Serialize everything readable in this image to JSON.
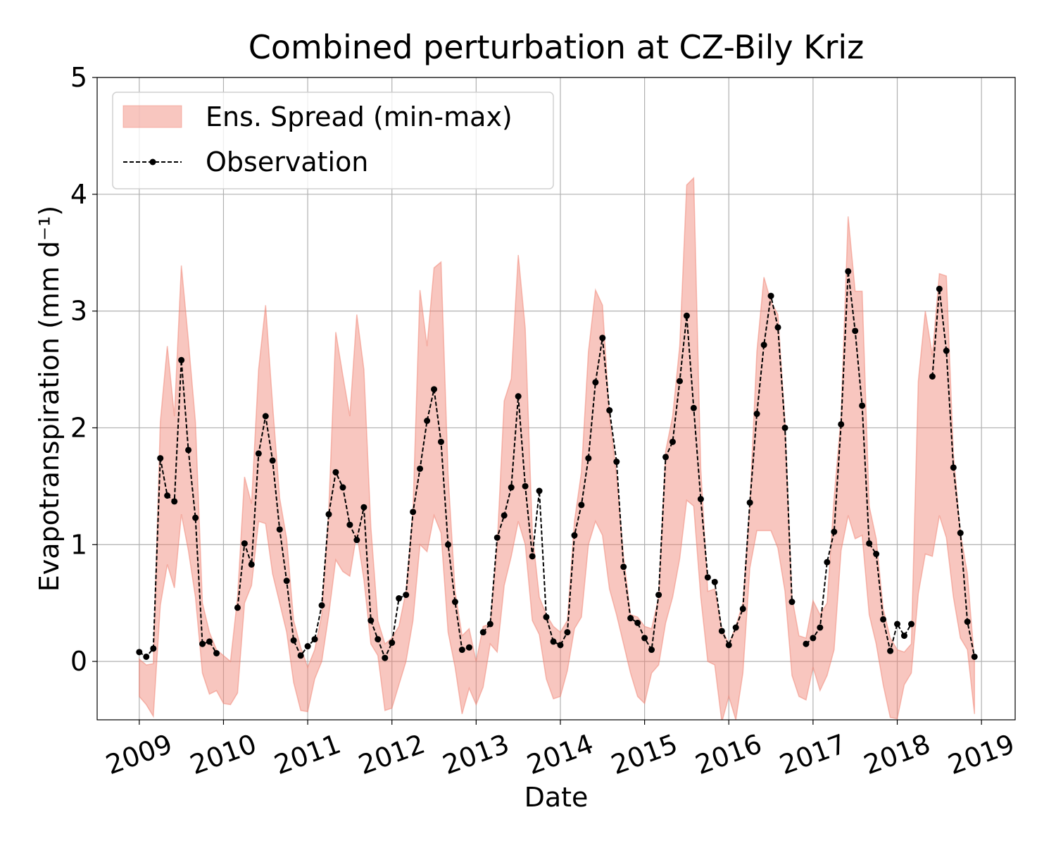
{
  "chart_data": {
    "type": "line",
    "title": "Combined perturbation at CZ-Bily Kriz",
    "xlabel": "Date",
    "ylabel": "Evapotranspiration  (mm d⁻¹)",
    "xlim": [
      2008.5,
      2019.4
    ],
    "xticks": [
      2009,
      2010,
      2011,
      2012,
      2013,
      2014,
      2015,
      2016,
      2017,
      2018,
      2019
    ],
    "ylim": [
      -0.5,
      5
    ],
    "yticks": [
      0,
      1,
      2,
      3,
      4,
      5
    ],
    "grid": true,
    "legend": "upper left",
    "x": [
      2009,
      2009.083,
      2009.167,
      2009.25,
      2009.333,
      2009.417,
      2009.5,
      2009.583,
      2009.667,
      2009.75,
      2009.833,
      2009.917,
      2010,
      2010.083,
      2010.167,
      2010.25,
      2010.333,
      2010.417,
      2010.5,
      2010.583,
      2010.667,
      2010.75,
      2010.833,
      2010.917,
      2011,
      2011.083,
      2011.167,
      2011.25,
      2011.333,
      2011.417,
      2011.5,
      2011.583,
      2011.667,
      2011.75,
      2011.833,
      2011.917,
      2012,
      2012.083,
      2012.167,
      2012.25,
      2012.333,
      2012.417,
      2012.5,
      2012.583,
      2012.667,
      2012.75,
      2012.833,
      2012.917,
      2013,
      2013.083,
      2013.167,
      2013.25,
      2013.333,
      2013.417,
      2013.5,
      2013.583,
      2013.667,
      2013.75,
      2013.833,
      2013.917,
      2014,
      2014.083,
      2014.167,
      2014.25,
      2014.333,
      2014.417,
      2014.5,
      2014.583,
      2014.667,
      2014.75,
      2014.833,
      2014.917,
      2015,
      2015.083,
      2015.167,
      2015.25,
      2015.333,
      2015.417,
      2015.5,
      2015.583,
      2015.667,
      2015.75,
      2015.833,
      2015.917,
      2016,
      2016.083,
      2016.167,
      2016.25,
      2016.333,
      2016.417,
      2016.5,
      2016.583,
      2016.667,
      2016.75,
      2016.833,
      2016.917,
      2017,
      2017.083,
      2017.167,
      2017.25,
      2017.333,
      2017.417,
      2017.5,
      2017.583,
      2017.667,
      2017.75,
      2017.833,
      2017.917,
      2018,
      2018.083,
      2018.167,
      2018.25,
      2018.333,
      2018.417,
      2018.5,
      2018.583,
      2018.667,
      2018.75,
      2018.833,
      2018.917
    ],
    "series": [
      {
        "name": "Ens. Spread (min-max)",
        "kind": "band",
        "color": "#f08070",
        "upper": [
          0.02,
          -0.03,
          -0.02,
          2.05,
          2.7,
          2.1,
          3.39,
          2.75,
          2.05,
          0.5,
          0.25,
          0.1,
          0.05,
          0,
          0.55,
          1.58,
          1.35,
          2.5,
          3.05,
          2.2,
          1.4,
          1.05,
          0.35,
          0.12,
          -0.05,
          0.1,
          0.4,
          1.3,
          2.82,
          2.45,
          2.1,
          2.97,
          2.5,
          1.15,
          0.35,
          0.15,
          0.2,
          0.3,
          0.6,
          1.3,
          3.18,
          2.7,
          3.37,
          3.42,
          1.6,
          0.6,
          0.22,
          0.28,
          0,
          0.3,
          0.32,
          1,
          2.23,
          2.42,
          3.48,
          2.85,
          1.1,
          0.55,
          0.4,
          0.3,
          0.25,
          0.35,
          1.2,
          1.62,
          2.65,
          3.18,
          3.05,
          2.1,
          1.6,
          0.9,
          0.4,
          0.38,
          0.3,
          0.28,
          0.55,
          1.8,
          2.1,
          2.7,
          4.08,
          4.14,
          1.65,
          0.6,
          0.62,
          0.28,
          0.15,
          0.3,
          0.5,
          1.35,
          2.65,
          3.29,
          3.08,
          2.97,
          2.05,
          0.55,
          0.22,
          0.2,
          0.52,
          0.4,
          0.5,
          1.4,
          2.1,
          3.81,
          3.17,
          3.17,
          1.33,
          1.05,
          0.45,
          0.2,
          0.1,
          0.08,
          0.15,
          2.4,
          3,
          2.62,
          3.32,
          3.3,
          1.77,
          1.1,
          0.75,
          0
        ],
        "lower": [
          -0.3,
          -0.37,
          -0.47,
          0.48,
          0.83,
          0.63,
          1.26,
          0.95,
          0.55,
          -0.1,
          -0.28,
          -0.25,
          -0.36,
          -0.37,
          -0.27,
          0.5,
          0.65,
          1.2,
          1.18,
          0.75,
          0.5,
          0.25,
          -0.18,
          -0.42,
          -0.43,
          -0.15,
          0,
          0.4,
          0.87,
          0.77,
          0.73,
          1.1,
          0.7,
          0.15,
          0.05,
          -0.42,
          -0.4,
          -0.2,
          0,
          0.35,
          1,
          0.94,
          1.25,
          1.1,
          0.25,
          -0.05,
          -0.45,
          -0.23,
          -0.37,
          -0.22,
          0.15,
          0.08,
          0.65,
          0.9,
          1.2,
          1,
          0.35,
          0.23,
          -0.15,
          -0.32,
          -0.3,
          -0.08,
          0.28,
          0.38,
          1,
          1.2,
          1.08,
          0.62,
          0.4,
          0.15,
          -0.1,
          -0.3,
          -0.36,
          -0.1,
          -0.03,
          0.33,
          0.55,
          0.88,
          1.38,
          1.33,
          0.55,
          0,
          -0.03,
          -0.52,
          -0.3,
          -0.5,
          -0.1,
          0.8,
          1.12,
          1.12,
          1.12,
          0.97,
          0.6,
          -0.12,
          -0.3,
          -0.33,
          -0.05,
          -0.25,
          -0.12,
          0.1,
          0.95,
          1.25,
          1.05,
          1.08,
          0.4,
          0.15,
          -0.2,
          -0.48,
          -0.49,
          -0.2,
          -0.1,
          0.58,
          0.92,
          0.9,
          1.25,
          1.06,
          0.55,
          0.2,
          0.1,
          -0.45
        ]
      },
      {
        "name": "Observation",
        "color": "#000000",
        "values": [
          0.08,
          0.04,
          0.11,
          1.74,
          1.42,
          1.37,
          2.58,
          1.81,
          1.23,
          0.15,
          0.17,
          0.07,
          null,
          null,
          0.46,
          1.01,
          0.83,
          1.78,
          2.1,
          1.72,
          1.13,
          0.69,
          0.18,
          0.05,
          0.13,
          0.19,
          0.48,
          1.26,
          1.62,
          1.49,
          1.17,
          1.04,
          1.32,
          0.35,
          0.19,
          0.03,
          0.16,
          0.54,
          0.57,
          1.28,
          1.65,
          2.06,
          2.33,
          1.88,
          1,
          0.51,
          0.1,
          0.12,
          null,
          0.25,
          0.32,
          1.06,
          1.25,
          1.49,
          2.27,
          1.5,
          0.9,
          1.46,
          0.38,
          0.17,
          0.14,
          0.25,
          1.08,
          1.34,
          1.74,
          2.39,
          2.77,
          2.15,
          1.71,
          0.81,
          0.37,
          0.33,
          0.2,
          0.1,
          0.57,
          1.75,
          1.88,
          2.4,
          2.96,
          2.17,
          1.39,
          0.72,
          0.68,
          0.26,
          0.14,
          0.29,
          0.45,
          1.36,
          2.12,
          2.71,
          3.13,
          2.86,
          2,
          0.51,
          null,
          0.15,
          0.2,
          0.29,
          0.85,
          1.11,
          2.03,
          3.34,
          2.83,
          2.19,
          1.01,
          0.92,
          0.36,
          0.09,
          0.32,
          0.22,
          0.32,
          null,
          null,
          2.44,
          3.19,
          2.66,
          1.66,
          1.1,
          0.34,
          0.04
        ]
      }
    ]
  }
}
